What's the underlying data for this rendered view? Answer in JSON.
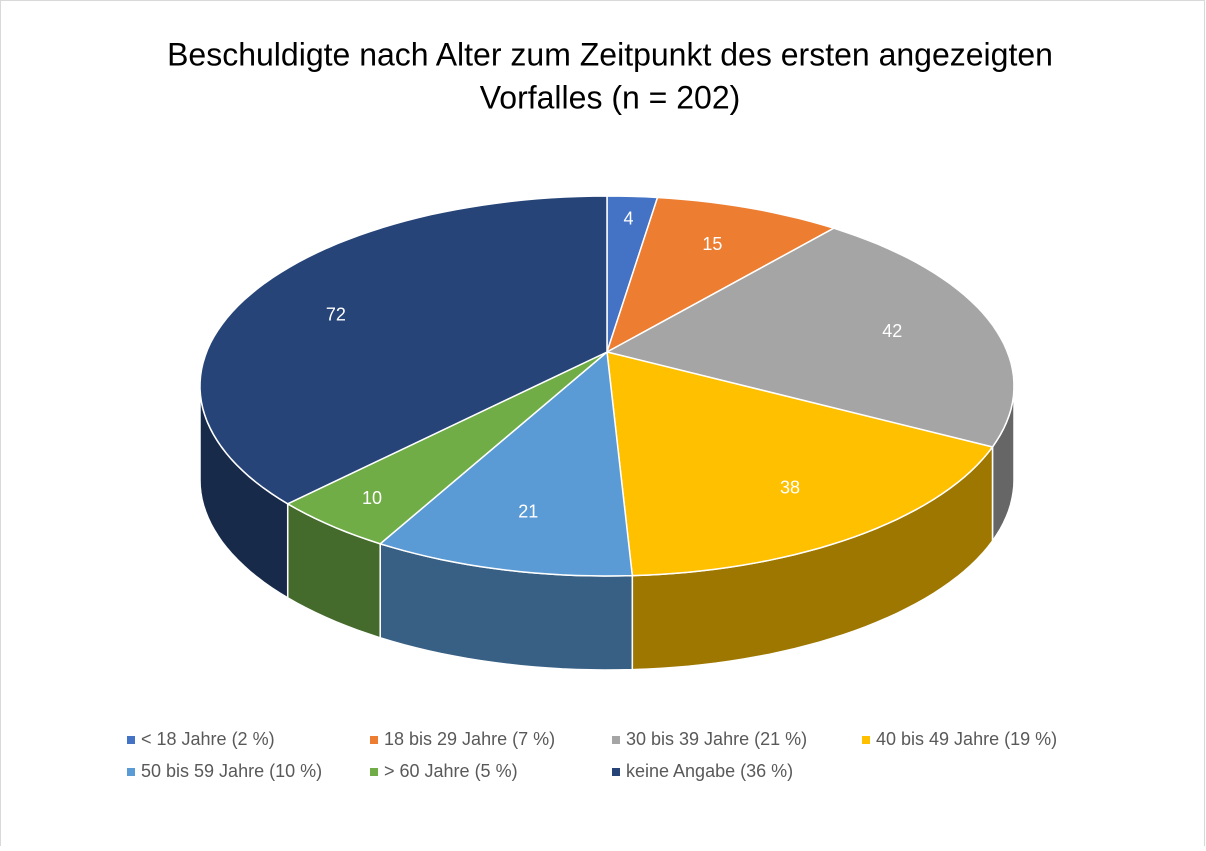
{
  "chart_data": {
    "type": "pie3d",
    "title": [
      "Beschuldigte nach Alter zum Zeitpunkt des ersten angezeigten",
      "Vorfalles (n = 202)"
    ],
    "categories": [
      "< 18 Jahre (2 %)",
      "18 bis 29 Jahre (7 %)",
      "30 bis 39 Jahre (21 %)",
      "40 bis 49 Jahre (19 %)",
      "50 bis 59 Jahre (10 %)",
      "> 60 Jahre (5 %)",
      "keine Angabe (36 %)"
    ],
    "values": [
      4,
      15,
      42,
      38,
      21,
      10,
      72
    ],
    "colors": [
      "#4472c4",
      "#ed7d31",
      "#a5a5a5",
      "#ffc000",
      "#5b9bd5",
      "#70ad47",
      "#264478"
    ],
    "legend": "bottom"
  }
}
